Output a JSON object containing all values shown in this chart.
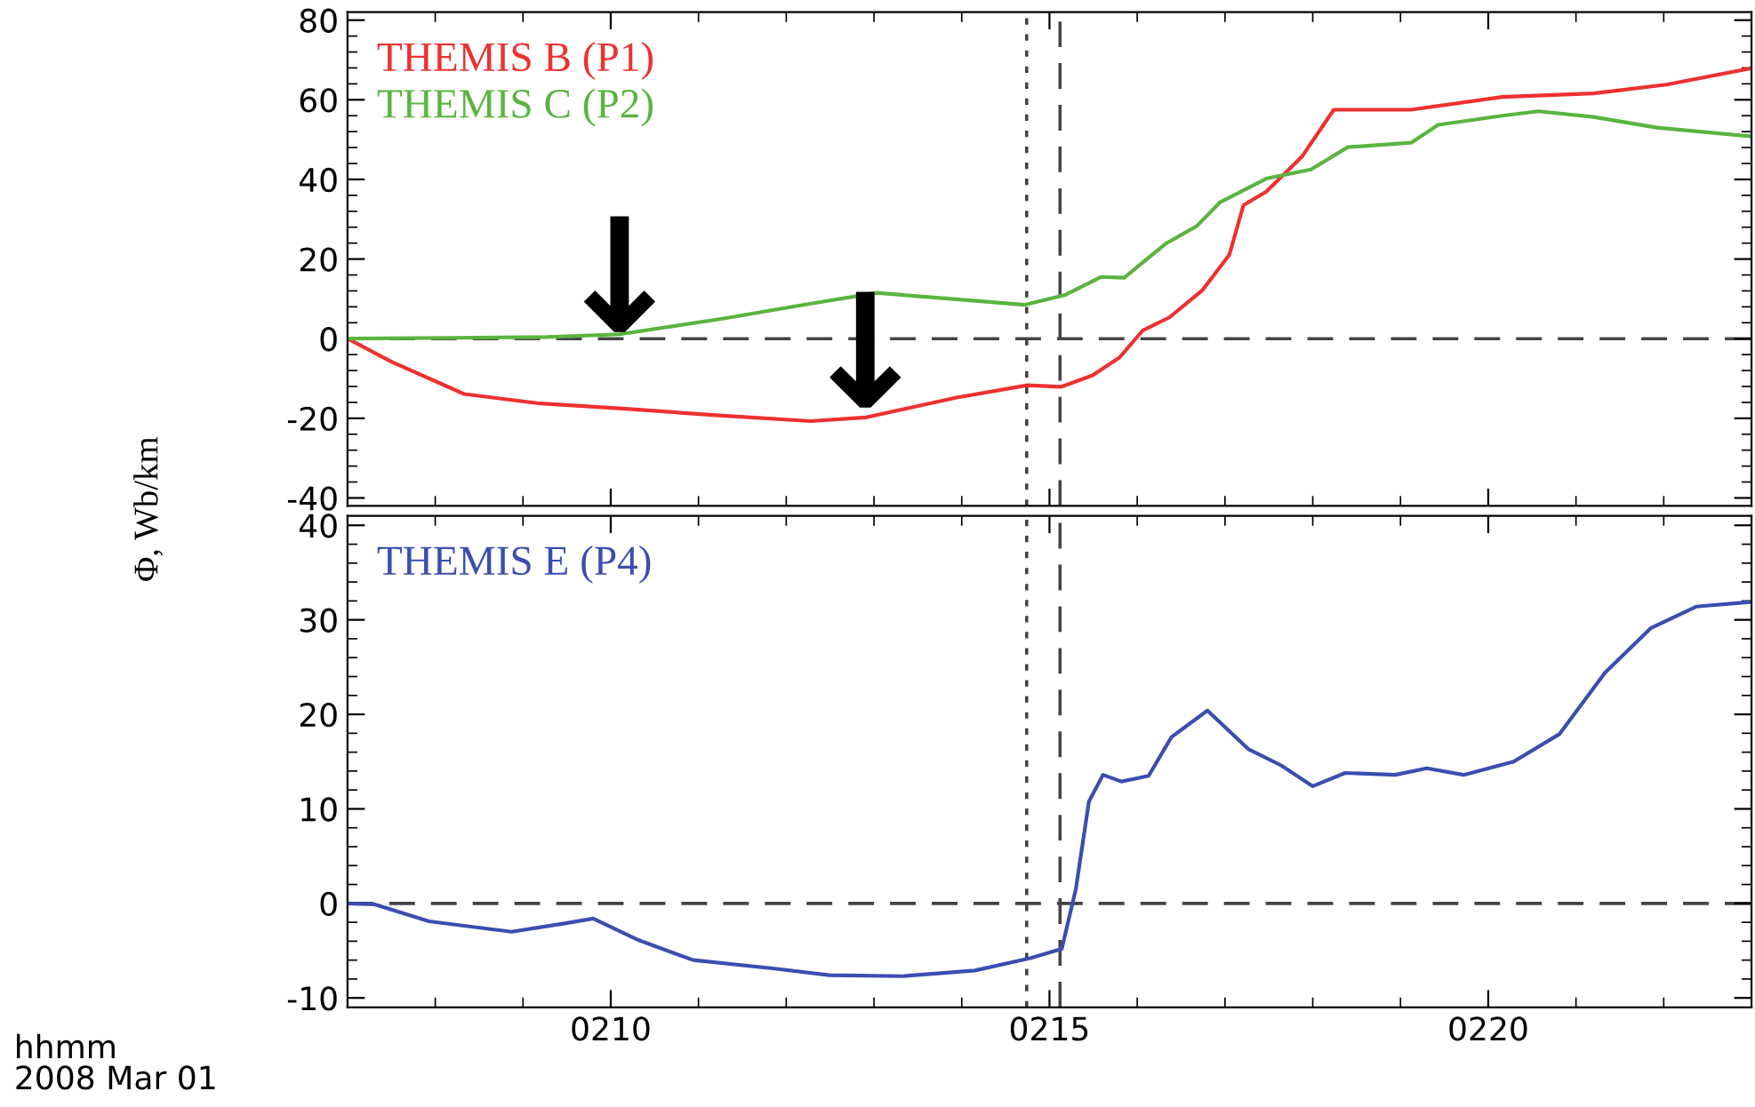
{
  "chart_data": [
    {
      "type": "line",
      "ylabel": "Φ, Wb/km",
      "xlim": [
        207,
        223
      ],
      "ylim": [
        -42,
        82
      ],
      "yticks": [
        -40,
        -20,
        0,
        20,
        40,
        60,
        80
      ],
      "xticks": [
        {
          "value": 210,
          "label": null
        },
        {
          "value": 215,
          "label": null
        },
        {
          "value": 220,
          "label": null
        }
      ],
      "tick_labels": "y",
      "legend": "top left",
      "grid": false,
      "marker": "none",
      "line_style": "solid",
      "series": [
        {
          "name": "THEMIS B (P1)",
          "color": "#ee3030",
          "x": [
            207,
            207.5,
            208.33,
            209.16,
            210.1,
            211.24,
            212.28,
            212.9,
            213.94,
            214.75,
            215.13,
            215.49,
            215.8,
            216.06,
            216.37,
            216.74,
            217.05,
            217.21,
            217.47,
            217.88,
            218.24,
            219.12,
            220.16,
            221.2,
            222.03,
            223
          ],
          "values": [
            0,
            -5.8,
            -13.9,
            -16.2,
            -17.5,
            -19.3,
            -20.7,
            -19.8,
            -14.8,
            -11.7,
            -12.1,
            -9.2,
            -4.7,
            2.0,
            5.4,
            12.1,
            21.1,
            33.5,
            36.9,
            45.8,
            57.5,
            57.5,
            60.7,
            61.6,
            63.8,
            67.9
          ]
        },
        {
          "name": "THEMIS C (P2)",
          "color": "#5ab440",
          "x": [
            207,
            209.27,
            210.1,
            211.24,
            212.28,
            213.03,
            213.94,
            214.72,
            215.18,
            215.59,
            215.85,
            216.32,
            216.68,
            216.94,
            217.47,
            217.98,
            218.4,
            219.12,
            219.43,
            220.16,
            220.57,
            221.2,
            221.92,
            223
          ],
          "values": [
            0,
            0.4,
            1.1,
            4.9,
            8.8,
            11.5,
            9.9,
            8.5,
            11.0,
            15.5,
            15.3,
            23.8,
            28.3,
            34.2,
            40.2,
            42.5,
            48.1,
            49.2,
            53.7,
            56.0,
            57.1,
            55.7,
            53.0,
            50.8
          ]
        }
      ],
      "ref_lines": [
        {
          "axis": "y",
          "value": 0,
          "color": "#444444",
          "line_style": "dashed"
        },
        {
          "axis": "x",
          "value": 214.74,
          "color": "#444444",
          "line_style": "dotted"
        },
        {
          "axis": "x",
          "value": 215.12,
          "color": "#444444",
          "line_style": "dashed"
        }
      ],
      "annotations": [
        {
          "text": "↓",
          "x": 210.1,
          "y": 1
        },
        {
          "text": "↓",
          "x": 212.9,
          "y": -18
        }
      ]
    },
    {
      "type": "line",
      "xlim": [
        207,
        223
      ],
      "ylim": [
        -11,
        41
      ],
      "yticks": [
        -10,
        0,
        10,
        20,
        30,
        40
      ],
      "xticks": [
        {
          "value": 210,
          "label": "0210"
        },
        {
          "value": 215,
          "label": "0215"
        },
        {
          "value": 220,
          "label": "0220"
        }
      ],
      "legend": "top left",
      "grid": false,
      "marker": "none",
      "line_style": "solid",
      "series": [
        {
          "name": "THEMIS E (P4)",
          "color": "#3a4eb0",
          "x": [
            207,
            207.31,
            207.93,
            208.87,
            209.49,
            209.8,
            210.32,
            210.94,
            211.87,
            212.49,
            213.32,
            214.15,
            214.78,
            215.14,
            215.3,
            215.45,
            215.61,
            215.82,
            216.13,
            216.39,
            216.8,
            217.27,
            217.64,
            218,
            218.37,
            218.94,
            219.3,
            219.72,
            220.29,
            220.81,
            221.33,
            221.85,
            222.37,
            223
          ],
          "values": [
            0,
            -0.1,
            -1.9,
            -3.0,
            -2.1,
            -1.6,
            -3.9,
            -6.0,
            -6.9,
            -7.6,
            -7.7,
            -7.1,
            -5.8,
            -4.8,
            1.5,
            10.8,
            13.6,
            12.9,
            13.5,
            17.6,
            20.4,
            16.3,
            14.6,
            12.4,
            13.8,
            13.6,
            14.3,
            13.6,
            15.0,
            17.9,
            24.4,
            29.1,
            31.4,
            31.9
          ]
        }
      ],
      "ref_lines": [
        {
          "axis": "y",
          "value": 0,
          "color": "#444444",
          "line_style": "dashed"
        },
        {
          "axis": "x",
          "value": 214.74,
          "color": "#444444",
          "line_style": "dotted"
        },
        {
          "axis": "x",
          "value": 215.12,
          "color": "#444444",
          "line_style": "dashed"
        }
      ],
      "annotations": [
        "hhmm\n2008 Mar 01"
      ]
    }
  ]
}
